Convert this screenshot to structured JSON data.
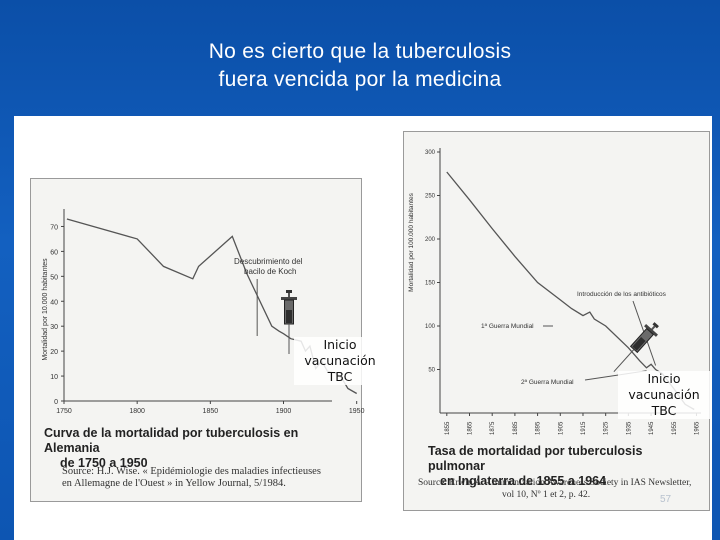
{
  "slide": {
    "title_line1": "No es cierto que la tuberculosis",
    "title_line2": "fuera vencida por la medicina",
    "page_number": "57",
    "overlay_label_line1": "Inicio",
    "overlay_label_line2": "vacunación",
    "overlay_label_line3": "TBC"
  },
  "colors": {
    "background": "#1360c0",
    "line": "#555555"
  },
  "chart_data": [
    {
      "type": "line",
      "ylabel": "Mortalidad por 10.000 habitantes",
      "xlim": [
        1750,
        1955
      ],
      "ylim": [
        0,
        75
      ],
      "xticks": [
        "1750",
        "1800",
        "1850",
        "1900",
        "1950"
      ],
      "yticks": [
        "0",
        "10",
        "20",
        "30",
        "40",
        "50",
        "60",
        "70"
      ],
      "x": [
        1752,
        1800,
        1818,
        1838,
        1842,
        1865,
        1875,
        1892,
        1897,
        1900,
        1905,
        1912,
        1915,
        1918,
        1922,
        1926,
        1930,
        1936,
        1940,
        1944,
        1950
      ],
      "values": [
        73,
        65,
        54,
        49,
        54,
        66,
        51,
        30,
        28,
        27,
        25,
        24,
        20,
        22,
        13,
        16,
        12,
        11,
        9,
        5,
        3
      ],
      "annotation_line1": "Descubrimiento del",
      "annotation_line2": "bacilo de Koch",
      "annotation_x": 1882,
      "caption_line1": "Curva de la mortalidad por tuberculosis en Alemania",
      "caption_line2": "de 1750 a 1950",
      "source_line1": "Source: H.J. Wise. « Epidémiologie des maladies infectieuses",
      "source_line2": "en Allemagne de l'Ouest » in Yellow Journal, 5/1984."
    },
    {
      "type": "line",
      "ylabel": "Mortalidad por 100.000 habitantes",
      "xlim": [
        1852,
        1967
      ],
      "ylim": [
        0,
        300
      ],
      "xticks": [
        "1855",
        "1865",
        "1875",
        "1885",
        "1895",
        "1905",
        "1915",
        "1925",
        "1935",
        "1945",
        "1955",
        "1965"
      ],
      "yticks": [
        "50",
        "100",
        "150",
        "200",
        "250",
        "300"
      ],
      "x": [
        1855,
        1865,
        1875,
        1885,
        1895,
        1905,
        1910,
        1915,
        1918,
        1920,
        1925,
        1935,
        1940,
        1943,
        1945,
        1947,
        1950,
        1955,
        1960,
        1964
      ],
      "values": [
        277,
        245,
        212,
        180,
        150,
        130,
        120,
        112,
        116,
        108,
        100,
        75,
        60,
        52,
        56,
        50,
        45,
        28,
        10,
        4
      ],
      "annotation_antibiotics": "Introducción de los antibióticos",
      "annotation_ww1": "1ª Guerra Mundial",
      "annotation_ww2": "2ª Guerra Mundial",
      "caption_line1": "Tasa de mortalidad por tuberculosis pulmonar",
      "caption_line2": "en Inglaterra de 1855 a 1964",
      "source_line1": "Source: Erwin A. - Immunization Awareness Society in IAS Newsletter,",
      "source_line2": "vol 10, Nº 1 et 2, p. 42."
    }
  ]
}
